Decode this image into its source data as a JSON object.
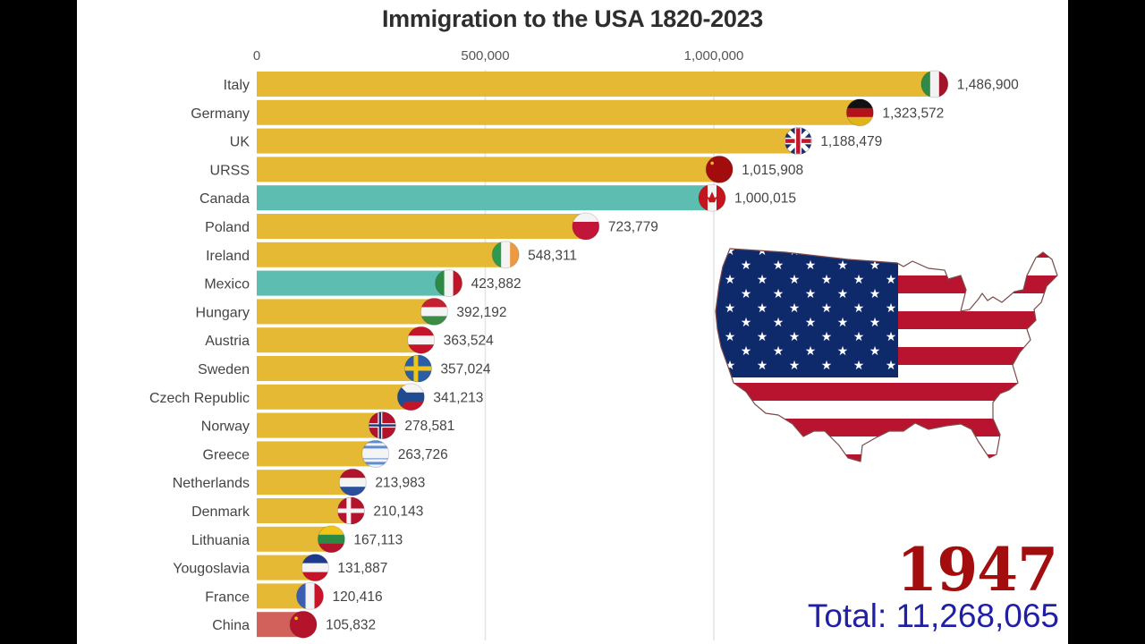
{
  "chart_data": {
    "type": "bar",
    "orientation": "horizontal",
    "title": "Immigration to the USA 1820-2023",
    "xlabel": "",
    "ylabel": "",
    "xlim": [
      0,
      1500000
    ],
    "x_ticks": [
      0,
      500000,
      1000000
    ],
    "x_tick_labels": [
      "0",
      "500,000",
      "1,000,000"
    ],
    "grid": true,
    "categories": [
      "Italy",
      "Germany",
      "UK",
      "URSS",
      "Canada",
      "Poland",
      "Ireland",
      "Mexico",
      "Hungary",
      "Austria",
      "Sweden",
      "Czech Republic",
      "Norway",
      "Greece",
      "Netherlands",
      "Denmark",
      "Lithuania",
      "Yougoslavia",
      "France",
      "China"
    ],
    "values": [
      1486900,
      1323572,
      1188479,
      1015908,
      1000015,
      723779,
      548311,
      423882,
      392192,
      363524,
      357024,
      341213,
      278581,
      263726,
      213983,
      210143,
      167113,
      131887,
      120416,
      105832
    ],
    "value_labels": [
      "1,486,900",
      "1,323,572",
      "1,188,479",
      "1,015,908",
      "1,000,015",
      "723,779",
      "548,311",
      "423,882",
      "392,192",
      "363,524",
      "357,024",
      "341,213",
      "278,581",
      "263,726",
      "213,983",
      "210,143",
      "167,113",
      "131,887",
      "120,416",
      "105,832"
    ],
    "bar_colors": [
      "#E6B935",
      "#E6B935",
      "#E6B935",
      "#E6B935",
      "#5CBDB0",
      "#E6B935",
      "#E6B935",
      "#5CBDB0",
      "#E6B935",
      "#E6B935",
      "#E6B935",
      "#E6B935",
      "#E6B935",
      "#E6B935",
      "#E6B935",
      "#E6B935",
      "#E6B935",
      "#E6B935",
      "#E6B935",
      "#D2615B"
    ],
    "flags": [
      "italy-flag",
      "germany-flag",
      "uk-flag",
      "urss-flag",
      "canada-flag",
      "poland-flag",
      "ireland-flag",
      "mexico-flag",
      "hungary-flag",
      "austria-flag",
      "sweden-flag",
      "czech-flag",
      "norway-flag",
      "greece-flag",
      "netherlands-flag",
      "denmark-flag",
      "lithuania-flag",
      "yugoslavia-flag",
      "france-flag",
      "china-flag"
    ]
  },
  "overlay": {
    "year": "1947",
    "total": "Total: 11,268,065",
    "map_icon": "usa-flag-map"
  },
  "colors": {
    "year": "#a30d0d",
    "total": "#1f1fa8"
  }
}
